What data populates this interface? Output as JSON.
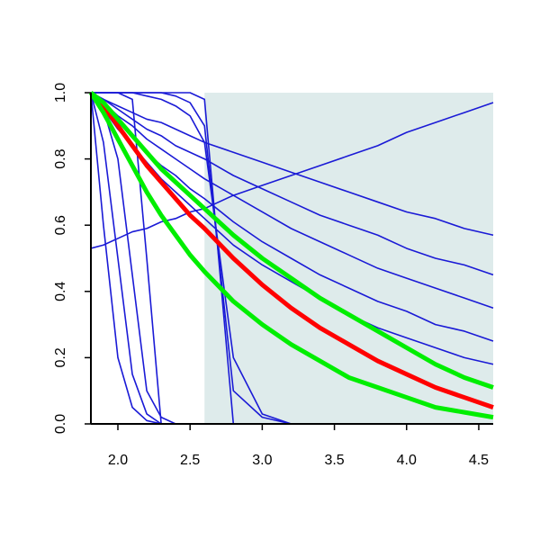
{
  "chart_data": {
    "type": "line",
    "x": [
      1.813,
      1.9,
      2.0,
      2.1,
      2.2,
      2.3,
      2.4,
      2.5,
      2.6,
      2.8,
      3.0,
      3.2,
      3.4,
      3.6,
      3.8,
      4.0,
      4.2,
      4.4,
      4.6
    ],
    "xlim": [
      1.813,
      4.6
    ],
    "ylim": [
      0,
      1
    ],
    "xticks": [
      {
        "value": 2,
        "label": "2.0"
      },
      2.5,
      {
        "value": 3,
        "label": "3.0"
      },
      3.5,
      {
        "value": 4,
        "label": "4.0"
      },
      4.5
    ],
    "yticks": [
      {
        "value": 0,
        "label": "0.0"
      },
      0.2,
      0.4,
      0.6,
      0.8,
      {
        "value": 1,
        "label": "1.0"
      }
    ],
    "shaded_region": {
      "x": [
        2.6,
        4.6
      ],
      "color": "#deebeb"
    },
    "series": [
      {
        "color": "#1a1ad6",
        "values": [
          1,
          0.98,
          0.96,
          0.94,
          0.92,
          0.91,
          0.89,
          0.87,
          0.85,
          0.82,
          0.79,
          0.76,
          0.73,
          0.7,
          0.67,
          0.64,
          0.62,
          0.59,
          0.57
        ]
      },
      {
        "color": "#1a1ad6",
        "values": [
          1,
          0.98,
          0.95,
          0.92,
          0.89,
          0.87,
          0.84,
          0.82,
          0.8,
          0.75,
          0.71,
          0.67,
          0.63,
          0.6,
          0.57,
          0.53,
          0.5,
          0.48,
          0.45
        ]
      },
      {
        "color": "#1a1ad6",
        "values": [
          1,
          0.97,
          0.93,
          0.9,
          0.86,
          0.83,
          0.8,
          0.77,
          0.74,
          0.69,
          0.64,
          0.59,
          0.55,
          0.51,
          0.47,
          0.44,
          0.41,
          0.38,
          0.35
        ]
      },
      {
        "color": "#1a1ad6",
        "values": [
          1,
          0.96,
          0.91,
          0.87,
          0.82,
          0.78,
          0.75,
          0.71,
          0.68,
          0.61,
          0.55,
          0.5,
          0.45,
          0.41,
          0.37,
          0.34,
          0.3,
          0.28,
          0.25
        ]
      },
      {
        "color": "#1a1ad6",
        "values": [
          1,
          0.95,
          0.89,
          0.84,
          0.79,
          0.74,
          0.7,
          0.66,
          0.62,
          0.54,
          0.48,
          0.43,
          0.38,
          0.33,
          0.29,
          0.26,
          0.23,
          0.2,
          0.18
        ]
      },
      {
        "color": "#1a1ad6",
        "values": [
          1,
          0.6,
          0.2,
          0.05,
          0.01,
          0,
          0,
          0,
          0,
          0,
          0,
          0,
          0,
          0,
          0,
          0,
          0,
          0,
          0
        ]
      },
      {
        "color": "#1a1ad6",
        "values": [
          1,
          0.85,
          0.5,
          0.15,
          0.03,
          0,
          0,
          0,
          0,
          0,
          0,
          0,
          0,
          0,
          0,
          0,
          0,
          0,
          0
        ]
      },
      {
        "color": "#1a1ad6",
        "values": [
          1,
          0.95,
          0.8,
          0.45,
          0.1,
          0.02,
          0,
          0,
          0,
          0,
          0,
          0,
          0,
          0,
          0,
          0,
          0,
          0,
          0
        ]
      },
      {
        "color": "#1a1ad6",
        "values": [
          1,
          1,
          1,
          0.98,
          0.5,
          0,
          0,
          0,
          0,
          0,
          0,
          0,
          0,
          0,
          0,
          0,
          0,
          0,
          0
        ]
      },
      {
        "color": "#1a1ad6",
        "values": [
          1,
          1,
          1,
          1,
          1,
          1,
          0.99,
          0.97,
          0.9,
          0.1,
          0.02,
          0,
          0,
          0,
          0,
          0,
          0,
          0,
          0
        ]
      },
      {
        "color": "#1a1ad6",
        "values": [
          1,
          1,
          1,
          1,
          1,
          1,
          1,
          1,
          0.98,
          0,
          0,
          0,
          0,
          0,
          0,
          0,
          0,
          0,
          0
        ]
      },
      {
        "color": "#1a1ad6",
        "values": [
          1,
          1,
          1,
          1,
          0.99,
          0.98,
          0.96,
          0.93,
          0.85,
          0.2,
          0.03,
          0,
          0,
          0,
          0,
          0,
          0,
          0,
          0
        ]
      },
      {
        "color": "#1a1ad6",
        "values": [
          0.53,
          0.54,
          0.56,
          0.58,
          0.59,
          0.61,
          0.62,
          0.64,
          0.65,
          0.69,
          0.72,
          0.75,
          0.78,
          0.81,
          0.84,
          0.88,
          0.91,
          0.94,
          0.97
        ]
      },
      {
        "color": "#ff0000",
        "width": 5,
        "values": [
          1,
          0.96,
          0.9,
          0.84,
          0.78,
          0.73,
          0.68,
          0.63,
          0.59,
          0.5,
          0.42,
          0.35,
          0.29,
          0.24,
          0.19,
          0.15,
          0.11,
          0.08,
          0.05
        ]
      },
      {
        "color": "#00ee00",
        "width": 5,
        "values": [
          1,
          0.94,
          0.86,
          0.78,
          0.7,
          0.63,
          0.57,
          0.51,
          0.46,
          0.37,
          0.3,
          0.24,
          0.19,
          0.14,
          0.11,
          0.08,
          0.05,
          0.035,
          0.02
        ]
      },
      {
        "color": "#00ee00",
        "width": 5,
        "values": [
          1,
          0.97,
          0.92,
          0.87,
          0.82,
          0.77,
          0.73,
          0.69,
          0.65,
          0.57,
          0.5,
          0.44,
          0.38,
          0.33,
          0.28,
          0.23,
          0.18,
          0.14,
          0.11
        ]
      }
    ]
  }
}
